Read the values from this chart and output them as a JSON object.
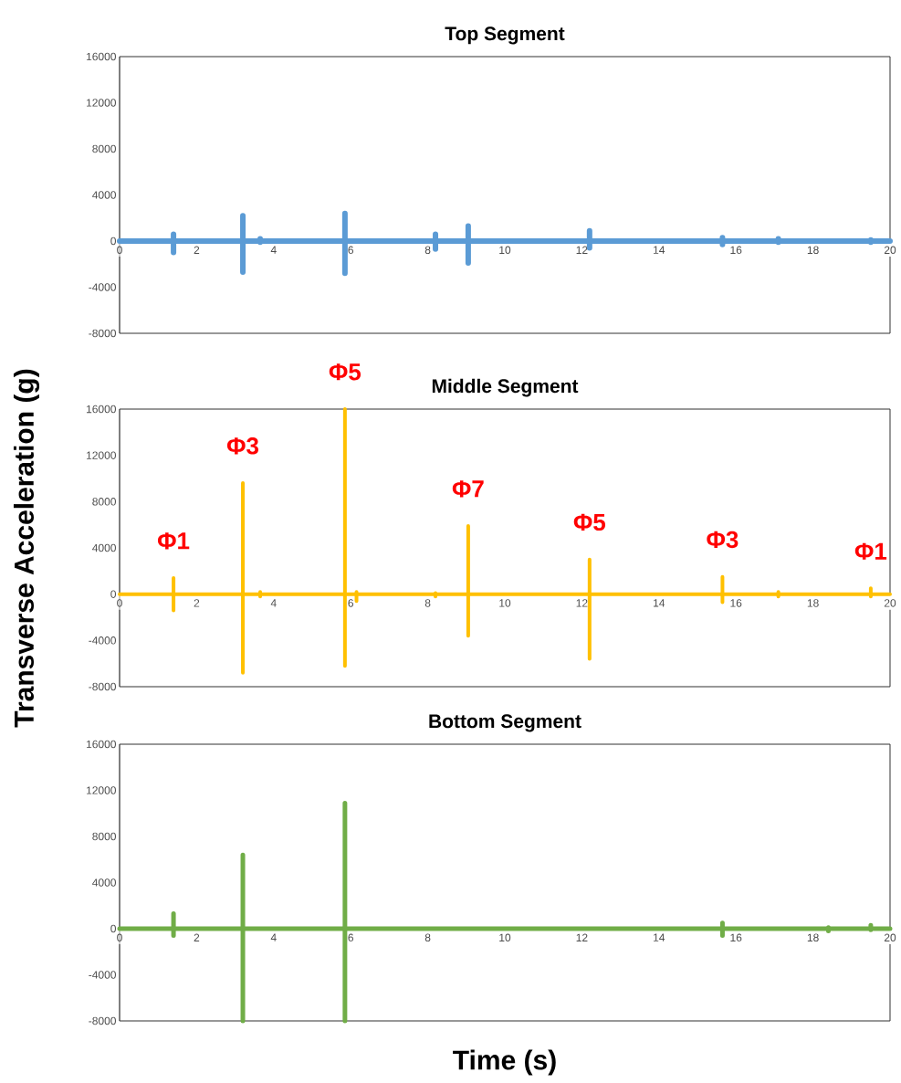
{
  "chart_data": [
    {
      "type": "line",
      "title": "Top Segment",
      "color": "#5b9bd5",
      "x": [
        0,
        1.4,
        1.4,
        1.4,
        1.4,
        3.2,
        3.2,
        3.2,
        3.2,
        3.65,
        3.65,
        3.65,
        3.65,
        5.85,
        5.85,
        5.85,
        5.85,
        8.2,
        8.2,
        8.2,
        8.2,
        9.05,
        9.05,
        9.05,
        9.05,
        12.2,
        12.2,
        12.2,
        12.2,
        15.65,
        15.65,
        15.65,
        15.65,
        17.1,
        17.1,
        17.1,
        17.1,
        19.5,
        19.5,
        19.5,
        19.5,
        20
      ],
      "values": [
        0,
        0,
        600,
        -1000,
        0,
        0,
        2200,
        -2700,
        0,
        0,
        200,
        -100,
        0,
        0,
        2400,
        -2800,
        0,
        0,
        600,
        -700,
        0,
        0,
        1300,
        -1900,
        0,
        0,
        900,
        -600,
        0,
        0,
        300,
        -300,
        0,
        0,
        200,
        -100,
        0,
        0,
        100,
        -100,
        0,
        0
      ],
      "xlim": [
        0,
        20
      ],
      "ylim": [
        -8000,
        16000
      ],
      "xticks": [
        0,
        2,
        4,
        6,
        8,
        10,
        12,
        14,
        16,
        18,
        20
      ],
      "yticks": [
        -8000,
        -4000,
        0,
        4000,
        8000,
        12000,
        16000
      ]
    },
    {
      "type": "line",
      "title": "Middle Segment",
      "ylabel": "Transverse Acceleration (g)",
      "color": "#ffc000",
      "x": [
        0,
        1.4,
        1.4,
        1.4,
        1.4,
        3.2,
        3.2,
        3.2,
        3.2,
        3.65,
        3.65,
        3.65,
        3.65,
        5.85,
        5.85,
        5.85,
        5.85,
        6.15,
        6.15,
        6.15,
        6.15,
        8.2,
        8.2,
        8.2,
        8.2,
        9.05,
        9.05,
        9.05,
        9.05,
        12.2,
        12.2,
        12.2,
        12.2,
        15.65,
        15.65,
        15.65,
        15.65,
        17.1,
        17.1,
        17.1,
        17.1,
        19.5,
        19.5,
        19.5,
        19.5,
        20
      ],
      "values": [
        0,
        0,
        1400,
        -1400,
        0,
        0,
        9600,
        -6800,
        0,
        0,
        200,
        -200,
        0,
        0,
        16000,
        -6200,
        0,
        0,
        200,
        -600,
        0,
        0,
        100,
        -200,
        0,
        0,
        5900,
        -3600,
        0,
        0,
        3000,
        -5600,
        0,
        0,
        1500,
        -700,
        0,
        0,
        200,
        -200,
        0,
        0,
        500,
        -200,
        0,
        0
      ],
      "xlim": [
        0,
        20
      ],
      "ylim": [
        -8000,
        16000
      ],
      "xticks": [
        0,
        2,
        4,
        6,
        8,
        10,
        12,
        14,
        16,
        18,
        20
      ],
      "yticks": [
        -8000,
        -4000,
        0,
        4000,
        8000,
        12000,
        16000
      ],
      "annotations": [
        {
          "text": "Φ1",
          "x": 1.4,
          "y": 1400
        },
        {
          "text": "Φ3",
          "x": 3.2,
          "y": 9600
        },
        {
          "text": "Φ5",
          "x": 5.85,
          "y": 16000
        },
        {
          "text": "Φ7",
          "x": 9.05,
          "y": 5900
        },
        {
          "text": "Φ5",
          "x": 12.2,
          "y": 3000
        },
        {
          "text": "Φ3",
          "x": 15.65,
          "y": 1500
        },
        {
          "text": "Φ1",
          "x": 19.5,
          "y": 500
        }
      ]
    },
    {
      "type": "line",
      "title": "Bottom Segment",
      "xlabel": "Time (s)",
      "color": "#70ad47",
      "x": [
        0,
        1.4,
        1.4,
        1.4,
        1.4,
        3.2,
        3.2,
        3.2,
        3.2,
        5.85,
        5.85,
        5.85,
        5.85,
        15.65,
        15.65,
        15.65,
        15.65,
        18.4,
        18.4,
        18.4,
        18.4,
        19.5,
        19.5,
        19.5,
        19.5,
        20
      ],
      "values": [
        0,
        0,
        1300,
        -600,
        0,
        0,
        6400,
        -8000,
        0,
        0,
        10900,
        -8000,
        0,
        0,
        500,
        -600,
        0,
        0,
        100,
        -200,
        0,
        0,
        300,
        -100,
        0,
        0
      ],
      "xlim": [
        0,
        20
      ],
      "ylim": [
        -8000,
        16000
      ],
      "xticks": [
        0,
        2,
        4,
        6,
        8,
        10,
        12,
        14,
        16,
        18,
        20
      ],
      "yticks": [
        -8000,
        -4000,
        0,
        4000,
        8000,
        12000,
        16000
      ]
    }
  ]
}
